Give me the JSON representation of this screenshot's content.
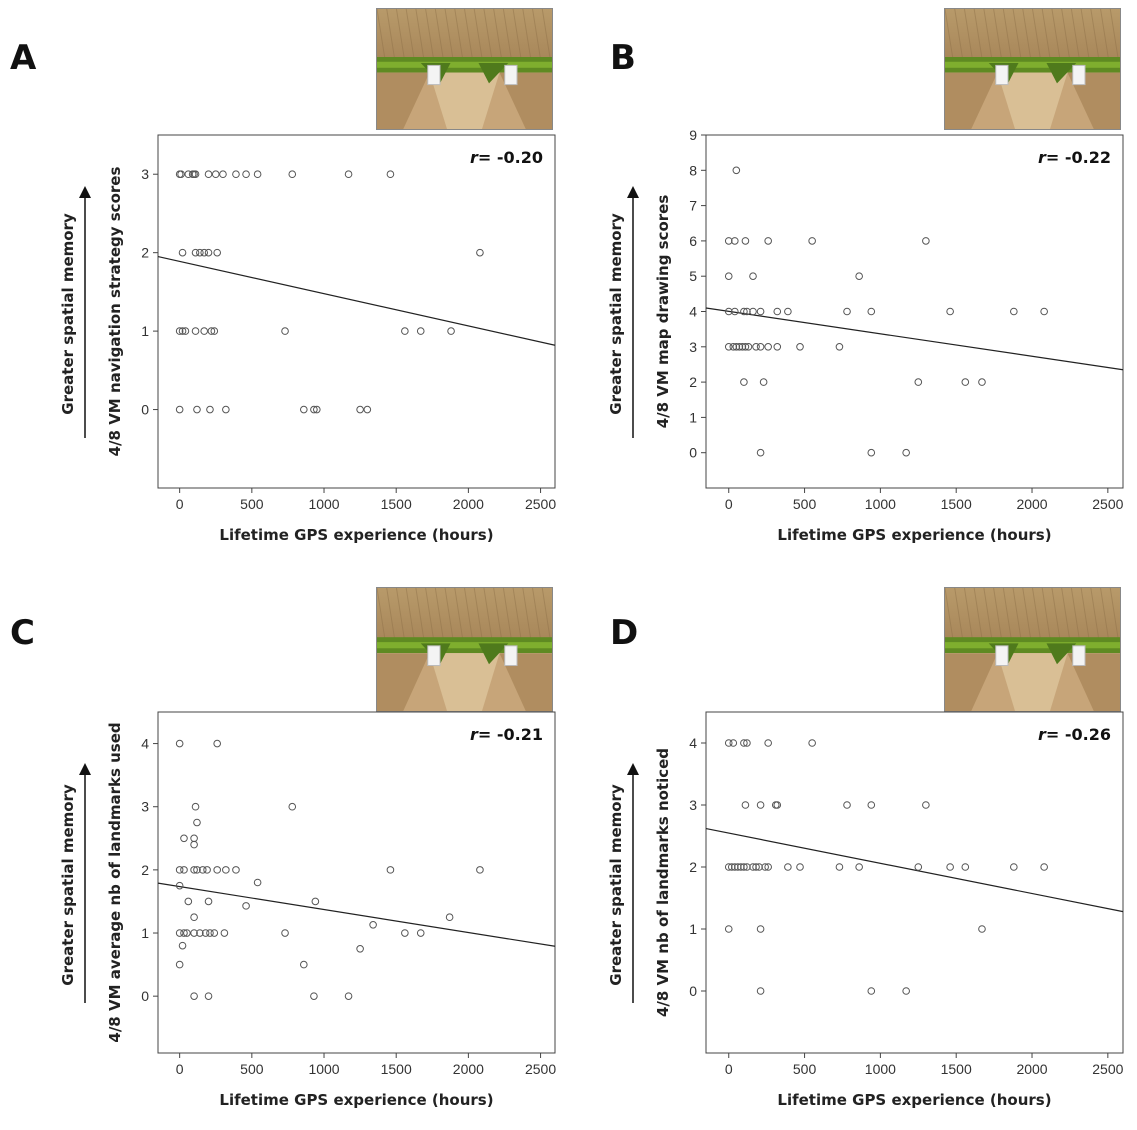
{
  "chart_data": [
    {
      "type": "scatter",
      "panel_letter": "A",
      "ylabel": "4/8 VM navigation strategy scores",
      "xlabel": "Lifetime GPS experience (hours)",
      "side_label": "Greater spatial memory",
      "r_prefix": "r",
      "r_value": "= -0.20",
      "xlim": [
        -150,
        2600
      ],
      "ylim": [
        -1,
        3.5
      ],
      "xticks": [
        0,
        500,
        1000,
        1500,
        2000,
        2500
      ],
      "yticks": [
        0,
        1,
        2,
        3
      ],
      "trend": {
        "x0": -150,
        "y0": 1.95,
        "x1": 2600,
        "y1": 0.82
      },
      "points": [
        [
          0,
          3
        ],
        [
          10,
          3
        ],
        [
          60,
          3
        ],
        [
          90,
          3
        ],
        [
          100,
          3
        ],
        [
          110,
          3
        ],
        [
          200,
          3
        ],
        [
          250,
          3
        ],
        [
          300,
          3
        ],
        [
          390,
          3
        ],
        [
          460,
          3
        ],
        [
          540,
          3
        ],
        [
          780,
          3
        ],
        [
          1170,
          3
        ],
        [
          1460,
          3
        ],
        [
          20,
          2
        ],
        [
          110,
          2
        ],
        [
          140,
          2
        ],
        [
          170,
          2
        ],
        [
          200,
          2
        ],
        [
          260,
          2
        ],
        [
          2080,
          2
        ],
        [
          0,
          1
        ],
        [
          20,
          1
        ],
        [
          40,
          1
        ],
        [
          110,
          1
        ],
        [
          170,
          1
        ],
        [
          220,
          1
        ],
        [
          240,
          1
        ],
        [
          730,
          1
        ],
        [
          1560,
          1
        ],
        [
          1670,
          1
        ],
        [
          1880,
          1
        ],
        [
          0,
          0
        ],
        [
          120,
          0
        ],
        [
          210,
          0
        ],
        [
          320,
          0
        ],
        [
          860,
          0
        ],
        [
          930,
          0
        ],
        [
          950,
          0
        ],
        [
          1250,
          0
        ],
        [
          1300,
          0
        ]
      ]
    },
    {
      "type": "scatter",
      "panel_letter": "B",
      "ylabel": "4/8 VM map drawing scores",
      "xlabel": "Lifetime GPS experience (hours)",
      "side_label": "Greater spatial memory",
      "r_prefix": "r",
      "r_value": "= -0.22",
      "xlim": [
        -150,
        2600
      ],
      "ylim": [
        -1,
        9
      ],
      "xticks": [
        0,
        500,
        1000,
        1500,
        2000,
        2500
      ],
      "yticks": [
        0,
        1,
        2,
        3,
        4,
        5,
        6,
        7,
        8,
        9
      ],
      "trend": {
        "x0": -150,
        "y0": 4.1,
        "x1": 2600,
        "y1": 2.35
      },
      "points": [
        [
          50,
          8
        ],
        [
          0,
          6
        ],
        [
          40,
          6
        ],
        [
          110,
          6
        ],
        [
          260,
          6
        ],
        [
          550,
          6
        ],
        [
          1300,
          6
        ],
        [
          0,
          5
        ],
        [
          160,
          5
        ],
        [
          860,
          5
        ],
        [
          0,
          4
        ],
        [
          40,
          4
        ],
        [
          100,
          4
        ],
        [
          120,
          4
        ],
        [
          160,
          4
        ],
        [
          210,
          4
        ],
        [
          320,
          4
        ],
        [
          390,
          4
        ],
        [
          780,
          4
        ],
        [
          940,
          4
        ],
        [
          1460,
          4
        ],
        [
          1880,
          4
        ],
        [
          2080,
          4
        ],
        [
          0,
          3
        ],
        [
          30,
          3
        ],
        [
          50,
          3
        ],
        [
          70,
          3
        ],
        [
          90,
          3
        ],
        [
          110,
          3
        ],
        [
          130,
          3
        ],
        [
          180,
          3
        ],
        [
          210,
          3
        ],
        [
          260,
          3
        ],
        [
          320,
          3
        ],
        [
          470,
          3
        ],
        [
          730,
          3
        ],
        [
          100,
          2
        ],
        [
          230,
          2
        ],
        [
          1250,
          2
        ],
        [
          1560,
          2
        ],
        [
          1670,
          2
        ],
        [
          210,
          0
        ],
        [
          940,
          0
        ],
        [
          1170,
          0
        ]
      ]
    },
    {
      "type": "scatter",
      "panel_letter": "C",
      "ylabel": "4/8 VM average nb of landmarks used",
      "xlabel": "Lifetime GPS experience (hours)",
      "side_label": "Greater spatial memory",
      "r_prefix": "r",
      "r_value": "= -0.21",
      "xlim": [
        -150,
        2600
      ],
      "ylim": [
        -0.9,
        4.5
      ],
      "xticks": [
        0,
        500,
        1000,
        1500,
        2000,
        2500
      ],
      "yticks": [
        0,
        1,
        2,
        3,
        4
      ],
      "trend": {
        "x0": -150,
        "y0": 1.79,
        "x1": 2600,
        "y1": 0.79
      },
      "points": [
        [
          0,
          4
        ],
        [
          260,
          4
        ],
        [
          110,
          3
        ],
        [
          780,
          3
        ],
        [
          120,
          2.75
        ],
        [
          30,
          2.5
        ],
        [
          100,
          2.5
        ],
        [
          100,
          2.4
        ],
        [
          0,
          2
        ],
        [
          30,
          2
        ],
        [
          100,
          2
        ],
        [
          120,
          2
        ],
        [
          160,
          2
        ],
        [
          190,
          2
        ],
        [
          260,
          2
        ],
        [
          320,
          2
        ],
        [
          390,
          2
        ],
        [
          1460,
          2
        ],
        [
          2080,
          2
        ],
        [
          540,
          1.8
        ],
        [
          0,
          1.75
        ],
        [
          200,
          1.5
        ],
        [
          60,
          1.5
        ],
        [
          940,
          1.5
        ],
        [
          460,
          1.43
        ],
        [
          1870,
          1.25
        ],
        [
          100,
          1.25
        ],
        [
          1340,
          1.13
        ],
        [
          0,
          1
        ],
        [
          30,
          1
        ],
        [
          50,
          1
        ],
        [
          100,
          1
        ],
        [
          140,
          1
        ],
        [
          180,
          1
        ],
        [
          210,
          1
        ],
        [
          240,
          1
        ],
        [
          310,
          1
        ],
        [
          730,
          1
        ],
        [
          1560,
          1
        ],
        [
          1670,
          1
        ],
        [
          20,
          0.8
        ],
        [
          1250,
          0.75
        ],
        [
          0,
          0.5
        ],
        [
          860,
          0.5
        ],
        [
          100,
          0
        ],
        [
          200,
          0
        ],
        [
          930,
          0
        ],
        [
          1170,
          0
        ]
      ]
    },
    {
      "type": "scatter",
      "panel_letter": "D",
      "ylabel": "4/8 VM nb of landmarks noticed",
      "xlabel": "Lifetime GPS experience (hours)",
      "side_label": "Greater spatial memory",
      "r_prefix": "r",
      "r_value": "= -0.26",
      "xlim": [
        -150,
        2600
      ],
      "ylim": [
        -1,
        4.5
      ],
      "xticks": [
        0,
        500,
        1000,
        1500,
        2000,
        2500
      ],
      "yticks": [
        0,
        1,
        2,
        3,
        4
      ],
      "trend": {
        "x0": -150,
        "y0": 2.62,
        "x1": 2600,
        "y1": 1.28
      },
      "points": [
        [
          0,
          4
        ],
        [
          30,
          4
        ],
        [
          100,
          4
        ],
        [
          120,
          4
        ],
        [
          260,
          4
        ],
        [
          550,
          4
        ],
        [
          110,
          3
        ],
        [
          210,
          3
        ],
        [
          310,
          3
        ],
        [
          320,
          3
        ],
        [
          780,
          3
        ],
        [
          940,
          3
        ],
        [
          1300,
          3
        ],
        [
          0,
          2
        ],
        [
          20,
          2
        ],
        [
          40,
          2
        ],
        [
          60,
          2
        ],
        [
          80,
          2
        ],
        [
          100,
          2
        ],
        [
          120,
          2
        ],
        [
          160,
          2
        ],
        [
          180,
          2
        ],
        [
          200,
          2
        ],
        [
          240,
          2
        ],
        [
          260,
          2
        ],
        [
          390,
          2
        ],
        [
          470,
          2
        ],
        [
          730,
          2
        ],
        [
          860,
          2
        ],
        [
          1250,
          2
        ],
        [
          1460,
          2
        ],
        [
          1560,
          2
        ],
        [
          1880,
          2
        ],
        [
          2080,
          2
        ],
        [
          0,
          1
        ],
        [
          210,
          1
        ],
        [
          1670,
          1
        ],
        [
          210,
          0
        ],
        [
          940,
          0
        ],
        [
          1170,
          0
        ]
      ]
    }
  ]
}
